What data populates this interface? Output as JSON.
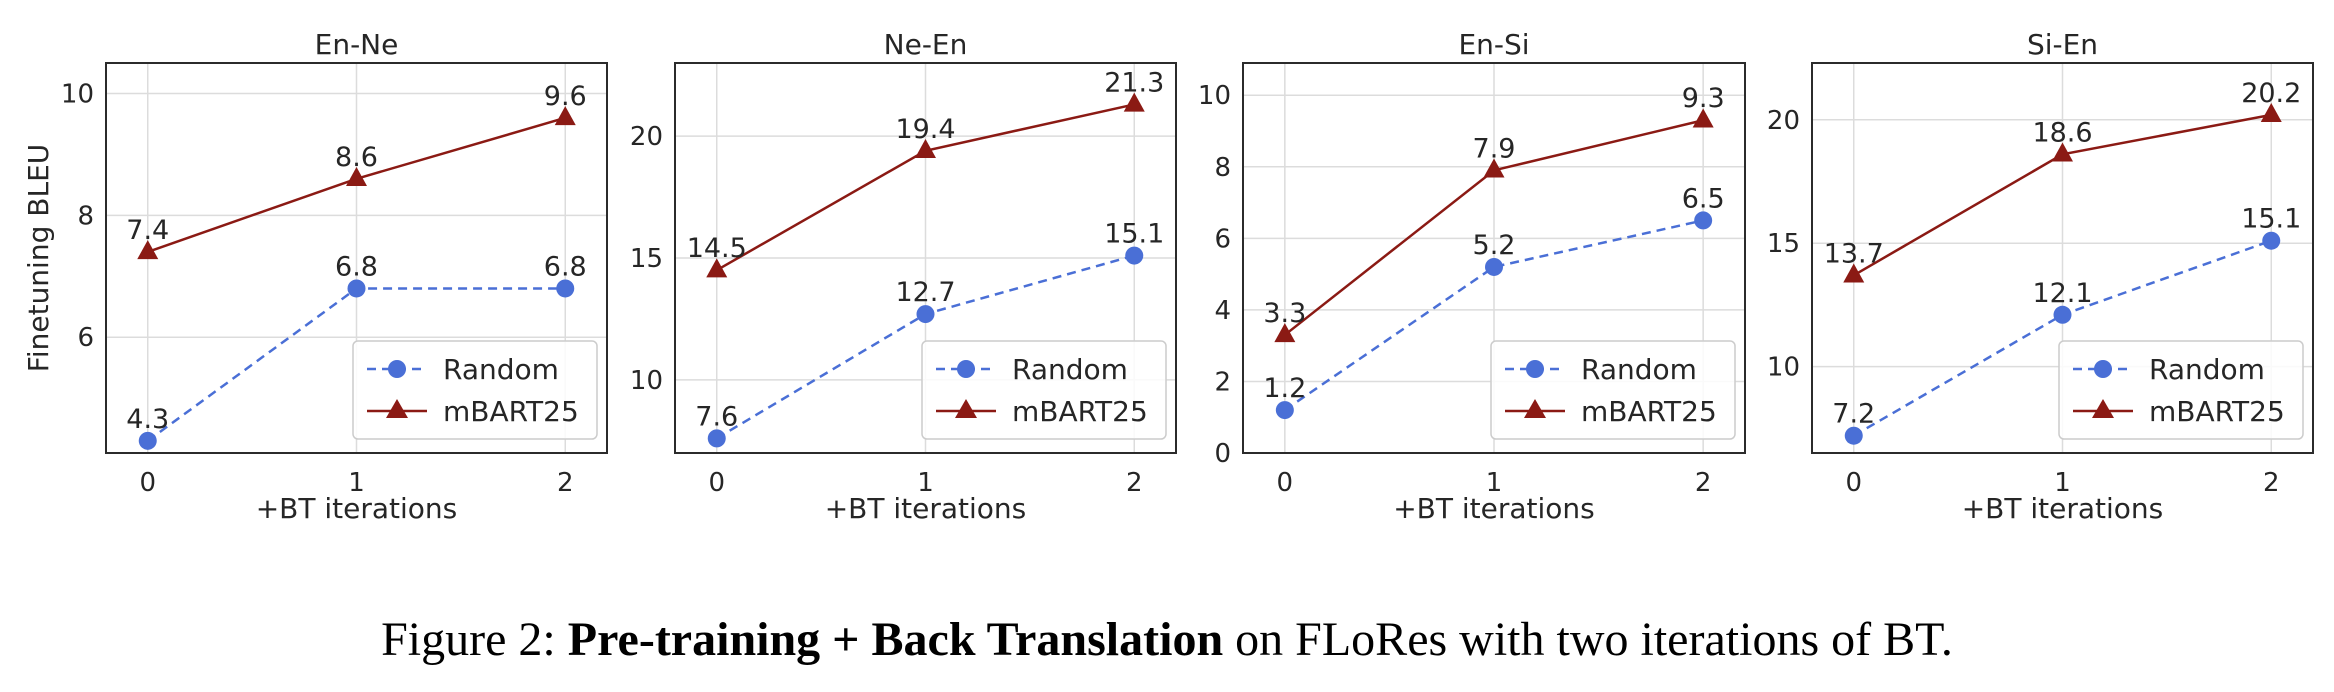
{
  "colors": {
    "random": "#4a6fd6",
    "mbart": "#8b1a14",
    "grid": "#dcdcdc",
    "frame": "#2b2b2b"
  },
  "caption": {
    "prefix": "Figure 2: ",
    "bold": "Pre-training + Back Translation",
    "suffix": " on FLoRes with two iterations of BT."
  },
  "chart_data": [
    {
      "type": "line",
      "title": "En-Ne",
      "xlabel": "+BT iterations",
      "ylabel": "Finetuning BLEU",
      "x": [
        0,
        1,
        2
      ],
      "xlim": [
        -0.2,
        2.2
      ],
      "ylim": [
        4.1,
        10.5
      ],
      "yticks": [
        6,
        8,
        10
      ],
      "grid": true,
      "legend": "lower-right",
      "series": [
        {
          "name": "Random",
          "values": [
            4.3,
            6.8,
            6.8
          ],
          "labels": [
            "4.3",
            "6.8",
            "6.8"
          ],
          "style": "dashed",
          "marker": "circle"
        },
        {
          "name": "mBART25",
          "values": [
            7.4,
            8.6,
            9.6
          ],
          "labels": [
            "7.4",
            "8.6",
            "9.6"
          ],
          "style": "solid",
          "marker": "triangle"
        }
      ]
    },
    {
      "type": "line",
      "title": "Ne-En",
      "xlabel": "+BT iterations",
      "ylabel": "",
      "x": [
        0,
        1,
        2
      ],
      "xlim": [
        -0.2,
        2.2
      ],
      "ylim": [
        7.0,
        23.0
      ],
      "yticks": [
        10,
        15,
        20
      ],
      "grid": true,
      "legend": "lower-right",
      "series": [
        {
          "name": "Random",
          "values": [
            7.6,
            12.7,
            15.1
          ],
          "labels": [
            "7.6",
            "12.7",
            "15.1"
          ],
          "style": "dashed",
          "marker": "circle"
        },
        {
          "name": "mBART25",
          "values": [
            14.5,
            19.4,
            21.3
          ],
          "labels": [
            "14.5",
            "19.4",
            "21.3"
          ],
          "style": "solid",
          "marker": "triangle"
        }
      ]
    },
    {
      "type": "line",
      "title": "En-Si",
      "xlabel": "+BT iterations",
      "ylabel": "",
      "x": [
        0,
        1,
        2
      ],
      "xlim": [
        -0.2,
        2.2
      ],
      "ylim": [
        0.0,
        10.9
      ],
      "yticks": [
        0,
        2,
        4,
        6,
        8,
        10
      ],
      "grid": true,
      "legend": "lower-right",
      "series": [
        {
          "name": "Random",
          "values": [
            1.2,
            5.2,
            6.5
          ],
          "labels": [
            "1.2",
            "5.2",
            "6.5"
          ],
          "style": "dashed",
          "marker": "circle"
        },
        {
          "name": "mBART25",
          "values": [
            3.3,
            7.9,
            9.3
          ],
          "labels": [
            "3.3",
            "7.9",
            "9.3"
          ],
          "style": "solid",
          "marker": "triangle"
        }
      ]
    },
    {
      "type": "line",
      "title": "Si-En",
      "xlabel": "+BT iterations",
      "ylabel": "",
      "x": [
        0,
        1,
        2
      ],
      "xlim": [
        -0.2,
        2.2
      ],
      "ylim": [
        6.5,
        22.3
      ],
      "yticks": [
        10,
        15,
        20
      ],
      "grid": true,
      "legend": "lower-right",
      "series": [
        {
          "name": "Random",
          "values": [
            7.2,
            12.1,
            15.1
          ],
          "labels": [
            "7.2",
            "12.1",
            "15.1"
          ],
          "style": "dashed",
          "marker": "circle"
        },
        {
          "name": "mBART25",
          "values": [
            13.7,
            18.6,
            20.2
          ],
          "labels": [
            "13.7",
            "18.6",
            "20.2"
          ],
          "style": "solid",
          "marker": "triangle"
        }
      ]
    }
  ]
}
